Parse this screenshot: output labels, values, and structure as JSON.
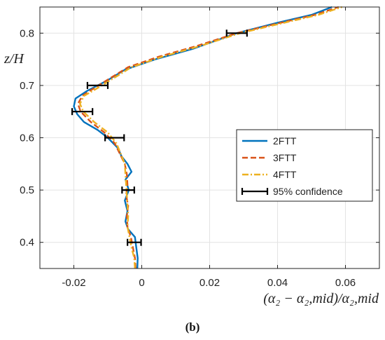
{
  "chart_data": {
    "type": "line",
    "panel_label": "(b)",
    "xlabel": "(α₂ − α₂,mid)/α₂,mid",
    "ylabel": "z/H",
    "xlim": [
      -0.03,
      0.07
    ],
    "ylim": [
      0.35,
      0.85
    ],
    "xticks": [
      -0.02,
      0,
      0.02,
      0.04,
      0.06
    ],
    "xtick_labels": [
      "-0.02",
      "0",
      "0.02",
      "0.04",
      "0.06"
    ],
    "yticks": [
      0.4,
      0.5,
      0.6,
      0.7,
      0.8
    ],
    "ytick_labels": [
      "0.4",
      "0.5",
      "0.6",
      "0.7",
      "0.8"
    ],
    "grid": true,
    "legend_position": "right",
    "series": [
      {
        "name": "2FTT",
        "color": "#0072BD",
        "style": "solid",
        "points": [
          [
            -0.0013,
            0.35
          ],
          [
            -0.0012,
            0.37
          ],
          [
            -0.0016,
            0.39
          ],
          [
            -0.002,
            0.41
          ],
          [
            -0.004,
            0.425
          ],
          [
            -0.0048,
            0.44
          ],
          [
            -0.0042,
            0.46
          ],
          [
            -0.005,
            0.48
          ],
          [
            -0.0038,
            0.5
          ],
          [
            -0.0048,
            0.52
          ],
          [
            -0.003,
            0.535
          ],
          [
            -0.0042,
            0.55
          ],
          [
            -0.006,
            0.565
          ],
          [
            -0.007,
            0.58
          ],
          [
            -0.01,
            0.6
          ],
          [
            -0.013,
            0.615
          ],
          [
            -0.017,
            0.63
          ],
          [
            -0.019,
            0.645
          ],
          [
            -0.02,
            0.66
          ],
          [
            -0.0195,
            0.675
          ],
          [
            -0.016,
            0.69
          ],
          [
            -0.01,
            0.71
          ],
          [
            -0.005,
            0.73
          ],
          [
            0.004,
            0.75
          ],
          [
            0.015,
            0.77
          ],
          [
            0.028,
            0.8
          ],
          [
            0.04,
            0.82
          ],
          [
            0.05,
            0.835
          ],
          [
            0.056,
            0.85
          ]
        ]
      },
      {
        "name": "3FTT",
        "color": "#D95319",
        "style": "dashed",
        "points": [
          [
            -0.0018,
            0.35
          ],
          [
            -0.002,
            0.37
          ],
          [
            -0.0026,
            0.39
          ],
          [
            -0.0032,
            0.41
          ],
          [
            -0.0042,
            0.43
          ],
          [
            -0.0044,
            0.45
          ],
          [
            -0.004,
            0.47
          ],
          [
            -0.0046,
            0.49
          ],
          [
            -0.0042,
            0.51
          ],
          [
            -0.0044,
            0.53
          ],
          [
            -0.005,
            0.55
          ],
          [
            -0.0065,
            0.57
          ],
          [
            -0.008,
            0.59
          ],
          [
            -0.011,
            0.61
          ],
          [
            -0.015,
            0.63
          ],
          [
            -0.018,
            0.65
          ],
          [
            -0.0188,
            0.665
          ],
          [
            -0.0175,
            0.68
          ],
          [
            -0.014,
            0.695
          ],
          [
            -0.009,
            0.715
          ],
          [
            -0.004,
            0.735
          ],
          [
            0.005,
            0.755
          ],
          [
            0.016,
            0.775
          ],
          [
            0.028,
            0.8
          ],
          [
            0.041,
            0.82
          ],
          [
            0.051,
            0.835
          ],
          [
            0.058,
            0.85
          ]
        ]
      },
      {
        "name": "4FTT",
        "color": "#EDB120",
        "style": "dashdot",
        "points": [
          [
            -0.002,
            0.35
          ],
          [
            -0.0022,
            0.37
          ],
          [
            -0.003,
            0.39
          ],
          [
            -0.0036,
            0.41
          ],
          [
            -0.0042,
            0.43
          ],
          [
            -0.004,
            0.45
          ],
          [
            -0.0042,
            0.47
          ],
          [
            -0.0044,
            0.49
          ],
          [
            -0.0046,
            0.51
          ],
          [
            -0.0048,
            0.53
          ],
          [
            -0.005,
            0.55
          ],
          [
            -0.0062,
            0.57
          ],
          [
            -0.0075,
            0.59
          ],
          [
            -0.01,
            0.61
          ],
          [
            -0.014,
            0.63
          ],
          [
            -0.0172,
            0.65
          ],
          [
            -0.0182,
            0.665
          ],
          [
            -0.017,
            0.68
          ],
          [
            -0.013,
            0.695
          ],
          [
            -0.008,
            0.715
          ],
          [
            -0.003,
            0.735
          ],
          [
            0.006,
            0.755
          ],
          [
            0.017,
            0.775
          ],
          [
            0.029,
            0.8
          ],
          [
            0.042,
            0.82
          ],
          [
            0.052,
            0.835
          ],
          [
            0.059,
            0.85
          ]
        ]
      }
    ],
    "confidence_label": "95% confidence",
    "confidence_color": "#000000",
    "confidence_bars": [
      {
        "y": 0.4,
        "x": -0.0022,
        "halfwidth": 0.002
      },
      {
        "y": 0.5,
        "x": -0.004,
        "halfwidth": 0.0018
      },
      {
        "y": 0.6,
        "x": -0.008,
        "halfwidth": 0.0028
      },
      {
        "y": 0.65,
        "x": -0.0175,
        "halfwidth": 0.003
      },
      {
        "y": 0.7,
        "x": -0.013,
        "halfwidth": 0.003
      },
      {
        "y": 0.8,
        "x": 0.028,
        "halfwidth": 0.003
      }
    ]
  }
}
